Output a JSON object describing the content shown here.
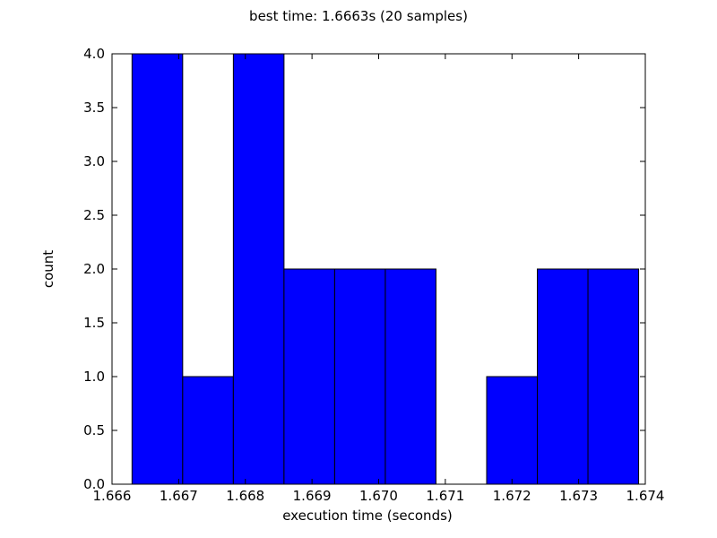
{
  "chart_data": {
    "type": "bar",
    "title": "best time: 1.6663s (20 samples)",
    "xlabel": "execution time (seconds)",
    "ylabel": "count",
    "xlim": [
      1.666,
      1.674
    ],
    "ylim": [
      0,
      4
    ],
    "x_ticks": [
      "1.666",
      "1.667",
      "1.668",
      "1.669",
      "1.670",
      "1.671",
      "1.672",
      "1.673",
      "1.674"
    ],
    "y_ticks": [
      "0.0",
      "0.5",
      "1.0",
      "1.5",
      "2.0",
      "2.5",
      "3.0",
      "3.5",
      "4.0"
    ],
    "bin_edges": [
      1.6663,
      1.66706,
      1.66782,
      1.66858,
      1.66934,
      1.6701,
      1.67086,
      1.67162,
      1.67238,
      1.67314,
      1.6739
    ],
    "values": [
      4,
      1,
      4,
      2,
      2,
      2,
      0,
      1,
      2,
      2
    ],
    "bar_color": "#0000ff",
    "edge_color": "#000000",
    "grid": false
  }
}
